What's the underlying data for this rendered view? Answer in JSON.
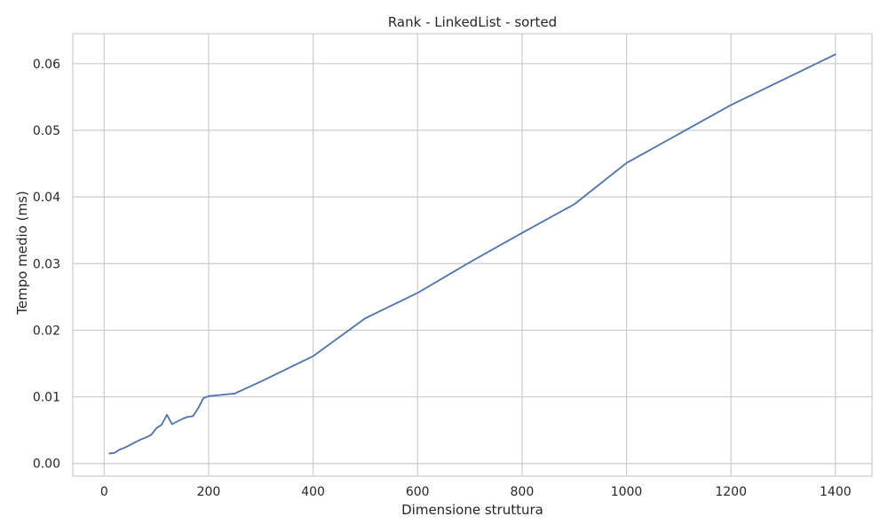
{
  "chart_data": {
    "type": "line",
    "title": "Rank - LinkedList - sorted",
    "xlabel": "Dimensione struttura",
    "ylabel": "Tempo medio (ms)",
    "xlim": [
      -60,
      1470
    ],
    "ylim": [
      -0.0019,
      0.0645
    ],
    "xticks": [
      0,
      200,
      400,
      600,
      800,
      1000,
      1200,
      1400
    ],
    "xtick_labels": [
      "0",
      "200",
      "400",
      "600",
      "800",
      "1000",
      "1200",
      "1400"
    ],
    "yticks": [
      0,
      0.01,
      0.02,
      0.03,
      0.04,
      0.05,
      0.06
    ],
    "ytick_labels": [
      "0.00",
      "0.01",
      "0.02",
      "0.03",
      "0.04",
      "0.05",
      "0.06"
    ],
    "grid": true,
    "series": [
      {
        "color": "#4c72b0",
        "x": [
          10,
          20,
          30,
          40,
          50,
          60,
          70,
          80,
          90,
          100,
          110,
          120,
          130,
          140,
          150,
          160,
          170,
          180,
          190,
          200,
          250,
          300,
          400,
          500,
          600,
          700,
          800,
          900,
          1000,
          1200,
          1400
        ],
        "y": [
          0.0015,
          0.0016,
          0.0021,
          0.0024,
          0.0028,
          0.0032,
          0.0036,
          0.0039,
          0.0043,
          0.0053,
          0.0058,
          0.0073,
          0.0059,
          0.0063,
          0.0067,
          0.007,
          0.0071,
          0.0083,
          0.0098,
          0.0101,
          0.0105,
          0.0123,
          0.0161,
          0.0218,
          0.0256,
          0.0302,
          0.0346,
          0.0389,
          0.0451,
          0.0538,
          0.0614
        ]
      }
    ]
  }
}
